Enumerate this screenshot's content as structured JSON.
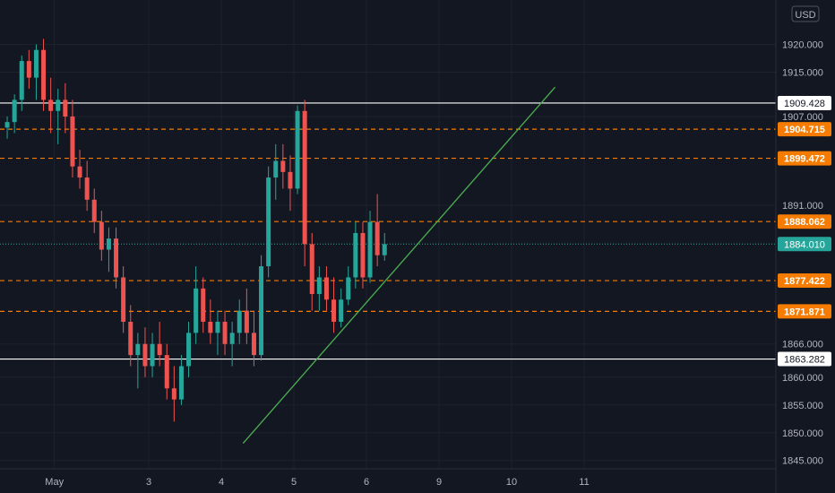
{
  "chart_data": {
    "type": "candlestick",
    "currency_badge": "USD",
    "ylim": [
      1843.5,
      1928
    ],
    "xlim": [
      0,
      86
    ],
    "grid": true,
    "y_ticks": [
      "1920.000",
      "1915.000",
      "1907.000",
      "1891.000",
      "1866.000",
      "1860.000",
      "1855.000",
      "1850.000",
      "1845.000"
    ],
    "y_tick_values": [
      1920,
      1915,
      1907,
      1891,
      1866,
      1860,
      1855,
      1850,
      1845
    ],
    "x_ticks": [
      {
        "label": "May",
        "x": 7
      },
      {
        "label": "3",
        "x": 20
      },
      {
        "label": "4",
        "x": 30
      },
      {
        "label": "5",
        "x": 40
      },
      {
        "label": "6",
        "x": 50
      },
      {
        "label": "9",
        "x": 60
      },
      {
        "label": "10",
        "x": 70
      },
      {
        "label": "11",
        "x": 80
      }
    ],
    "levels": [
      {
        "price": 1909.428,
        "label": "1909.428",
        "style": "solid",
        "color": "#ffffff"
      },
      {
        "price": 1904.715,
        "label": "1904.715",
        "style": "dashed",
        "color": "#f57c00"
      },
      {
        "price": 1899.472,
        "label": "1899.472",
        "style": "dashed",
        "color": "#f57c00"
      },
      {
        "price": 1888.062,
        "label": "1888.062",
        "style": "dashed",
        "color": "#f57c00"
      },
      {
        "price": 1877.422,
        "label": "1877.422",
        "style": "dashed",
        "color": "#f57c00"
      },
      {
        "price": 1871.871,
        "label": "1871.871",
        "style": "dashed",
        "color": "#f57c00"
      },
      {
        "price": 1863.282,
        "label": "1863.282",
        "style": "solid",
        "color": "#ffffff"
      }
    ],
    "last_price": {
      "price": 1884.01,
      "label": "1884.010",
      "color": "#26a69a"
    },
    "trendline": {
      "x1": 33,
      "y1": 1848.1,
      "x2": 76,
      "y2": 1912.3,
      "color": "#4caf50"
    },
    "colors": {
      "up": "#26a69a",
      "down": "#ef5350",
      "bg": "#131722",
      "grid": "#1e222d"
    },
    "candles": [
      [
        1905,
        1907,
        1903,
        1906
      ],
      [
        1906,
        1911,
        1904,
        1910
      ],
      [
        1910,
        1918,
        1908,
        1917
      ],
      [
        1917,
        1919,
        1912,
        1914
      ],
      [
        1914,
        1920,
        1910,
        1919
      ],
      [
        1919,
        1921,
        1908,
        1910
      ],
      [
        1910,
        1914,
        1904,
        1908
      ],
      [
        1908,
        1912,
        1902,
        1910
      ],
      [
        1910,
        1913,
        1904,
        1907
      ],
      [
        1907,
        1910,
        1896,
        1898
      ],
      [
        1898,
        1901,
        1894,
        1896
      ],
      [
        1896,
        1899,
        1890,
        1892
      ],
      [
        1892,
        1894,
        1886,
        1888
      ],
      [
        1888,
        1890,
        1881,
        1883
      ],
      [
        1883,
        1887,
        1879,
        1885
      ],
      [
        1885,
        1887,
        1876,
        1878
      ],
      [
        1878,
        1880,
        1868,
        1870
      ],
      [
        1870,
        1873,
        1862,
        1864
      ],
      [
        1864,
        1868,
        1858,
        1866
      ],
      [
        1866,
        1869,
        1860,
        1862
      ],
      [
        1862,
        1868,
        1860,
        1866
      ],
      [
        1866,
        1870,
        1862,
        1864
      ],
      [
        1864,
        1866,
        1856,
        1858
      ],
      [
        1858,
        1862,
        1852,
        1856
      ],
      [
        1856,
        1864,
        1855,
        1862
      ],
      [
        1862,
        1870,
        1860,
        1868
      ],
      [
        1868,
        1880,
        1866,
        1876
      ],
      [
        1876,
        1878,
        1868,
        1870
      ],
      [
        1870,
        1874,
        1866,
        1868
      ],
      [
        1868,
        1872,
        1864,
        1870
      ],
      [
        1870,
        1872,
        1864,
        1866
      ],
      [
        1866,
        1870,
        1862,
        1868
      ],
      [
        1868,
        1874,
        1866,
        1872
      ],
      [
        1872,
        1876,
        1866,
        1868
      ],
      [
        1868,
        1872,
        1862,
        1864
      ],
      [
        1864,
        1882,
        1863,
        1880
      ],
      [
        1880,
        1898,
        1878,
        1896
      ],
      [
        1896,
        1902,
        1892,
        1899
      ],
      [
        1899,
        1902,
        1894,
        1897
      ],
      [
        1897,
        1900,
        1890,
        1894
      ],
      [
        1894,
        1909,
        1893,
        1908
      ],
      [
        1908,
        1910,
        1880,
        1884
      ],
      [
        1884,
        1886,
        1872,
        1875
      ],
      [
        1875,
        1880,
        1872,
        1878
      ],
      [
        1878,
        1880,
        1872,
        1874
      ],
      [
        1874,
        1878,
        1868,
        1870
      ],
      [
        1870,
        1876,
        1869,
        1874
      ],
      [
        1874,
        1880,
        1873,
        1878
      ],
      [
        1878,
        1888,
        1876,
        1886
      ],
      [
        1886,
        1888,
        1876,
        1878
      ],
      [
        1878,
        1890,
        1877,
        1888
      ],
      [
        1888,
        1893,
        1880,
        1882
      ],
      [
        1882,
        1886,
        1881,
        1884
      ]
    ]
  }
}
